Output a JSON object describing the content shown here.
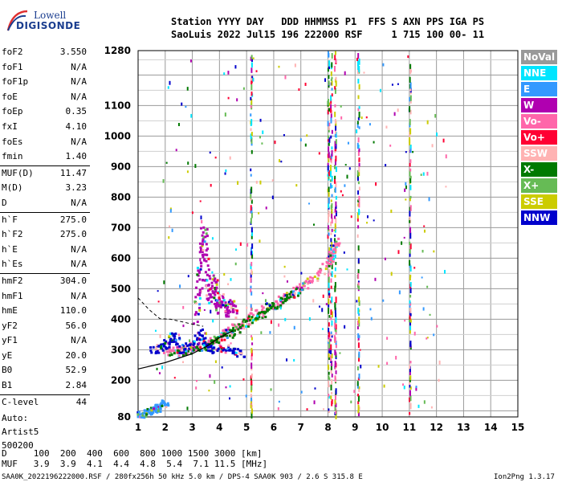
{
  "logo": {
    "line1": "Lowell",
    "line2": "DIGISONDE"
  },
  "header": {
    "row1": "Station YYYY DAY   DDD HHMMSS P1  FFS S AXN PPS IGA PS",
    "row2": "SaoLuis 2022 Jul15 196 222000 RSF     1 715 100 00- 11"
  },
  "params": [
    {
      "label": "foF2",
      "value": "3.550"
    },
    {
      "label": "foF1",
      "value": "N/A"
    },
    {
      "label": "foF1p",
      "value": "N/A"
    },
    {
      "label": "foE",
      "value": "N/A"
    },
    {
      "label": "foEp",
      "value": "0.35"
    },
    {
      "label": "fxI",
      "value": "4.10"
    },
    {
      "label": "foEs",
      "value": "N/A"
    },
    {
      "label": "fmin",
      "value": "1.40"
    },
    {
      "label": "MUF(D)",
      "value": "11.47"
    },
    {
      "label": "M(D)",
      "value": "3.23"
    },
    {
      "label": "D",
      "value": "N/A"
    },
    {
      "label": "h`F",
      "value": "275.0"
    },
    {
      "label": "h`F2",
      "value": "275.0"
    },
    {
      "label": "h`E",
      "value": "N/A"
    },
    {
      "label": "h`Es",
      "value": "N/A"
    },
    {
      "label": "hmF2",
      "value": "304.0"
    },
    {
      "label": "hmF1",
      "value": "N/A"
    },
    {
      "label": "hmE",
      "value": "110.0"
    },
    {
      "label": "yF2",
      "value": "56.0"
    },
    {
      "label": "yF1",
      "value": "N/A"
    },
    {
      "label": "yE",
      "value": "20.0"
    },
    {
      "label": "B0",
      "value": "52.9"
    },
    {
      "label": "B1",
      "value": "2.84"
    },
    {
      "label": "C-level",
      "value": "44"
    }
  ],
  "auto": [
    "Auto:",
    "Artist5",
    "500200"
  ],
  "legend": [
    {
      "label": "NoVal",
      "color": "#999999"
    },
    {
      "label": "NNE",
      "color": "#00e5ff"
    },
    {
      "label": "E",
      "color": "#3399ff"
    },
    {
      "label": "W",
      "color": "#b000b0"
    },
    {
      "label": "Vo-",
      "color": "#ff66aa"
    },
    {
      "label": "Vo+",
      "color": "#ff0033"
    },
    {
      "label": "SSW",
      "color": "#ffb3b3"
    },
    {
      "label": "X-",
      "color": "#007a00"
    },
    {
      "label": "X+",
      "color": "#66bb55"
    },
    {
      "label": "SSE",
      "color": "#cccc00"
    },
    {
      "label": "NNW",
      "color": "#0000cc"
    }
  ],
  "mufTable": {
    "dRow": "D     100  200  400  600  800 1000 1500 3000 [km]",
    "mufRow": "MUF   3.9  3.9  4.1  4.4  4.8  5.4  7.1 11.5 [MHz]"
  },
  "footer": {
    "left": "SAA0K_2022196222000.RSF / 280fx256h 50 kHz 5.0 km / DPS-4 SAA0K 903 / 2.6 S 315.8 E",
    "right": "Ion2Png 1.3.17"
  },
  "chart_data": {
    "type": "scatter",
    "title": "",
    "xlabel": "",
    "ylabel": "",
    "xlim": [
      1,
      15
    ],
    "ylim": [
      80,
      1280
    ],
    "xticks": [
      1,
      2,
      3,
      4,
      5,
      6,
      7,
      8,
      9,
      10,
      11,
      12,
      13,
      14,
      15
    ],
    "yticks": [
      80,
      200,
      300,
      400,
      500,
      600,
      700,
      800,
      900,
      1000,
      1100,
      1280
    ],
    "grid": true,
    "legend_position": "right",
    "traces": [
      {
        "name": "F2 O-trace",
        "color": "#ff66aa",
        "points": [
          [
            2.0,
            300
          ],
          [
            2.5,
            298
          ],
          [
            3.0,
            305
          ],
          [
            3.5,
            320
          ],
          [
            4.0,
            345
          ],
          [
            4.5,
            375
          ],
          [
            5.0,
            405
          ],
          [
            5.5,
            430
          ],
          [
            6.0,
            455
          ],
          [
            6.5,
            480
          ],
          [
            7.0,
            510
          ],
          [
            7.5,
            540
          ],
          [
            8.0,
            590
          ],
          [
            8.2,
            630
          ],
          [
            8.3,
            660
          ]
        ]
      },
      {
        "name": "F2 X-trace",
        "color": "#007a00",
        "points": [
          [
            2.2,
            290
          ],
          [
            3.0,
            300
          ],
          [
            3.5,
            320
          ],
          [
            4.0,
            340
          ],
          [
            4.5,
            360
          ],
          [
            5.0,
            395
          ],
          [
            5.5,
            420
          ],
          [
            6.0,
            450
          ],
          [
            6.5,
            475
          ],
          [
            7.0,
            505
          ]
        ]
      },
      {
        "name": "Es blob",
        "color": "#b000b0",
        "points": [
          [
            3.1,
            400
          ],
          [
            3.2,
            500
          ],
          [
            3.3,
            600
          ],
          [
            3.4,
            700
          ],
          [
            3.5,
            560
          ],
          [
            3.6,
            460
          ],
          [
            3.8,
            540
          ],
          [
            3.9,
            430
          ],
          [
            4.0,
            480
          ],
          [
            4.2,
            420
          ],
          [
            4.4,
            460
          ],
          [
            4.6,
            410
          ]
        ]
      },
      {
        "name": "Low echoes",
        "color": "#3399ff",
        "points": [
          [
            1.0,
            92
          ],
          [
            1.2,
            95
          ],
          [
            1.4,
            100
          ],
          [
            1.6,
            108
          ],
          [
            1.8,
            118
          ],
          [
            2.0,
            130
          ]
        ]
      },
      {
        "name": "Spread F",
        "color": "#0000cc",
        "points": [
          [
            1.5,
            300
          ],
          [
            1.8,
            310
          ],
          [
            2.1,
            330
          ],
          [
            2.3,
            350
          ],
          [
            2.6,
            300
          ],
          [
            3.0,
            320
          ],
          [
            3.3,
            360
          ],
          [
            3.6,
            300
          ],
          [
            4.0,
            310
          ],
          [
            4.5,
            300
          ],
          [
            4.8,
            290
          ]
        ]
      }
    ],
    "profile_curve": [
      [
        1.0,
        237
      ],
      [
        2.0,
        258
      ],
      [
        3.0,
        287
      ],
      [
        3.5,
        310
      ],
      [
        4.0,
        340
      ],
      [
        4.5,
        362
      ]
    ],
    "dashed_curve": [
      [
        1.0,
        470
      ],
      [
        1.4,
        432
      ],
      [
        1.8,
        402
      ],
      [
        2.2,
        400
      ],
      [
        2.6,
        392
      ],
      [
        3.0,
        384
      ],
      [
        3.4,
        377
      ]
    ],
    "vertical_interference_mhz": [
      5.15,
      8.0,
      8.1,
      8.25,
      9.1,
      11.0
    ]
  }
}
